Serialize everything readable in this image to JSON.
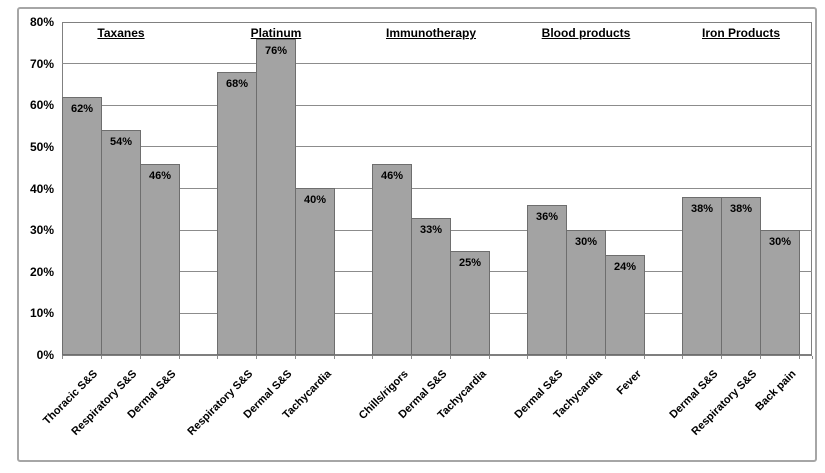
{
  "chart_data": {
    "type": "bar",
    "title": "",
    "xlabel": "",
    "ylabel": "",
    "ylim": [
      0,
      80
    ],
    "ytick_labels": [
      "0%",
      "10%",
      "20%",
      "30%",
      "40%",
      "50%",
      "60%",
      "70%",
      "80%"
    ],
    "grid": true,
    "legend": false,
    "colors": {
      "bar_fill": "#a3a3a3",
      "bar_border": "#6e6e6e",
      "gridline": "#8c8c8c",
      "frame": "#a6a6a6",
      "text": "#000000",
      "background": "#ffffff"
    },
    "groups": [
      {
        "name": "Taxanes",
        "categories": [
          "Thoracic S&S",
          "Respiratory S&S",
          "Dermal S&S"
        ],
        "values": [
          62,
          54,
          46
        ],
        "value_labels": [
          "62%",
          "54%",
          "46%"
        ]
      },
      {
        "name": "Platinum",
        "categories": [
          "Respiratory S&S",
          "Dermal S&S",
          "Tachycardia"
        ],
        "values": [
          68,
          76,
          40
        ],
        "value_labels": [
          "68%",
          "76%",
          "40%"
        ]
      },
      {
        "name": "Immunotherapy",
        "categories": [
          "Chills/rigors",
          "Dermal S&S",
          "Tachycardia"
        ],
        "values": [
          46,
          33,
          25
        ],
        "value_labels": [
          "46%",
          "33%",
          "25%"
        ]
      },
      {
        "name": "Blood products",
        "categories": [
          "Dermal S&S",
          "Tachycardia",
          "Fever"
        ],
        "values": [
          36,
          30,
          24
        ],
        "value_labels": [
          "36%",
          "30%",
          "24%"
        ]
      },
      {
        "name": "Iron Products",
        "categories": [
          "Dermal S&S",
          "Respiratory S&S",
          "Back pain"
        ],
        "values": [
          38,
          38,
          30
        ],
        "value_labels": [
          "38%",
          "38%",
          "30%"
        ]
      }
    ]
  }
}
